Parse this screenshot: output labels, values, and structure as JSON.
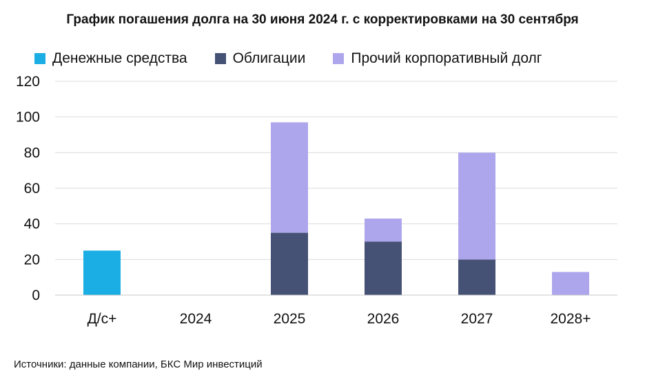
{
  "title": "График погашения долга на 30 июня 2024 г. с корректировками на 30 сентября",
  "source": "Источники: данные компании, БКС Мир инвестиций",
  "chart_data": {
    "type": "bar",
    "stacked": true,
    "categories": [
      "Д/с+",
      "2024",
      "2025",
      "2026",
      "2027",
      "2028+"
    ],
    "series": [
      {
        "name": "Денежные средства",
        "color": "#1baee4",
        "values": [
          25,
          0,
          0,
          0,
          0,
          0
        ]
      },
      {
        "name": "Облигации",
        "color": "#465275",
        "values": [
          0,
          0,
          35,
          30,
          20,
          0
        ]
      },
      {
        "name": "Прочий корпоративный долг",
        "color": "#aea6ec",
        "values": [
          0,
          0,
          62,
          13,
          60,
          13
        ]
      }
    ],
    "ylim": [
      0,
      120
    ],
    "yticks": [
      0,
      20,
      40,
      60,
      80,
      100,
      120
    ],
    "grid": true,
    "legend": "top-left"
  }
}
